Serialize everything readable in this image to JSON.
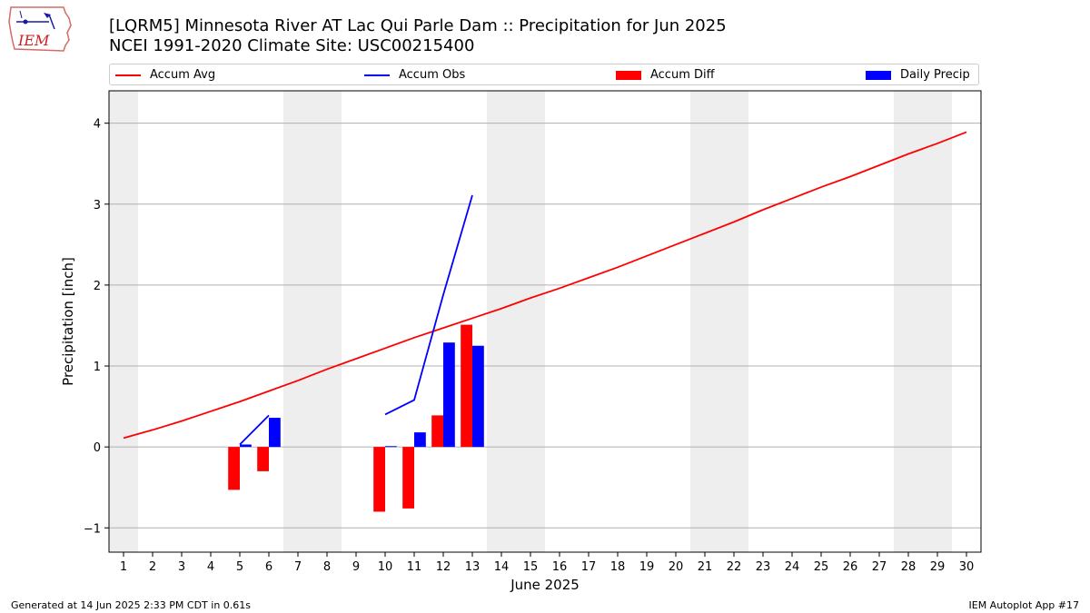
{
  "header": {
    "title_line1": "[LQRM5] Minnesota River  AT Lac Qui Parle Dam :: Precipitation for Jun 2025",
    "title_line2": "NCEI 1991-2020 Climate Site: USC00215400"
  },
  "logo": {
    "text": "IEM",
    "icon": "iem-iowa-logo-icon"
  },
  "footer": {
    "left": "Generated at 14 Jun 2025 2:33 PM CDT in 0.61s",
    "right": "IEM Autoplot App #17"
  },
  "colors": {
    "avg": "#ff0000",
    "obs": "#0000ff",
    "diff": "#ff0000",
    "daily": "#0000ff",
    "weekend": "#eeeeee",
    "grid": "#b0b0b0"
  },
  "legend": [
    {
      "label": "Accum Avg",
      "kind": "line",
      "color": "#ff0000"
    },
    {
      "label": "Accum Obs",
      "kind": "line",
      "color": "#0000ff"
    },
    {
      "label": "Accum Diff",
      "kind": "box",
      "color": "#ff0000"
    },
    {
      "label": "Daily Precip",
      "kind": "box",
      "color": "#0000ff"
    }
  ],
  "chart_data": {
    "type": "bar",
    "xlabel": "June 2025",
    "ylabel": "Precipitation [inch]",
    "xlim": [
      0.5,
      30.5
    ],
    "ylim": [
      -1.3,
      4.4
    ],
    "yticks": [
      -1,
      0,
      1,
      2,
      3,
      4
    ],
    "ytick_labels": [
      "−1",
      "0",
      "1",
      "2",
      "3",
      "4"
    ],
    "xticks": [
      1,
      2,
      3,
      4,
      5,
      6,
      7,
      8,
      9,
      10,
      11,
      12,
      13,
      14,
      15,
      16,
      17,
      18,
      19,
      20,
      21,
      22,
      23,
      24,
      25,
      26,
      27,
      28,
      29,
      30
    ],
    "grid": "horizontal",
    "legend_position": "top",
    "weekend_days": [
      1,
      7,
      8,
      14,
      15,
      21,
      22,
      28,
      29
    ],
    "series": [
      {
        "name": "Accum Avg",
        "type": "line",
        "x": [
          1,
          2,
          3,
          4,
          5,
          6,
          7,
          8,
          9,
          10,
          11,
          12,
          13,
          14,
          15,
          16,
          17,
          18,
          19,
          20,
          21,
          22,
          23,
          24,
          25,
          26,
          27,
          28,
          29,
          30
        ],
        "values": [
          0.11,
          0.21,
          0.32,
          0.44,
          0.56,
          0.69,
          0.82,
          0.96,
          1.09,
          1.22,
          1.35,
          1.47,
          1.59,
          1.71,
          1.84,
          1.96,
          2.09,
          2.22,
          2.36,
          2.5,
          2.64,
          2.78,
          2.93,
          3.07,
          3.21,
          3.34,
          3.48,
          3.62,
          3.75,
          3.89
        ]
      },
      {
        "name": "Accum Obs",
        "type": "line",
        "segments": [
          {
            "x": [
              5,
              6
            ],
            "values": [
              0.03,
              0.39
            ]
          },
          {
            "x": [
              10,
              11,
              12,
              13
            ],
            "values": [
              0.4,
              0.58,
              1.88,
              3.11
            ]
          }
        ]
      },
      {
        "name": "Accum Diff",
        "type": "bar",
        "x": [
          5,
          6,
          10,
          11,
          12,
          13
        ],
        "values": [
          -0.53,
          -0.3,
          -0.8,
          -0.76,
          0.39,
          1.51
        ]
      },
      {
        "name": "Daily Precip",
        "type": "bar",
        "x": [
          5,
          6,
          10,
          11,
          12,
          13
        ],
        "values": [
          0.03,
          0.36,
          0.01,
          0.18,
          1.29,
          1.25
        ]
      }
    ]
  }
}
